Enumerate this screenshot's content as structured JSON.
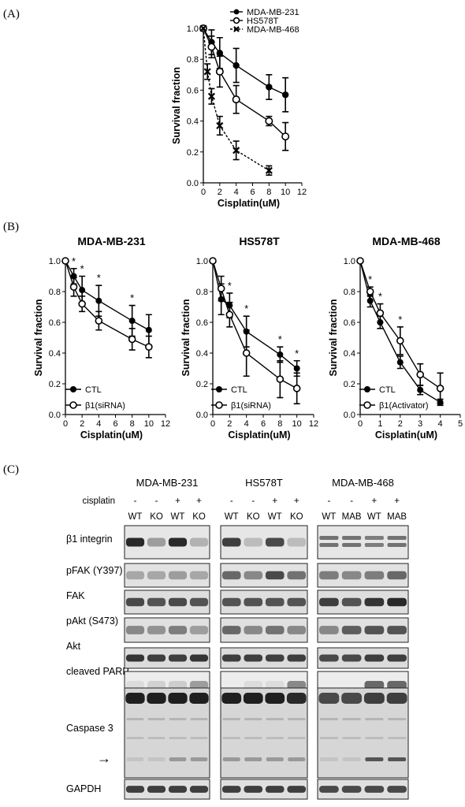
{
  "panels": {
    "a": "(A)",
    "b": "(B)",
    "c": "(C)"
  },
  "chart_data": [
    {
      "id": "A",
      "type": "line",
      "title": "",
      "xlabel": "Cisplatin(uM)",
      "ylabel": "Survival fraction",
      "xlim": [
        0,
        12
      ],
      "ylim": [
        0,
        1.0
      ],
      "xticks": [
        "0",
        "2",
        "4",
        "6",
        "8",
        "10",
        "12"
      ],
      "yticks": [
        "0.0",
        "0.2",
        "0.4",
        "0.6",
        "0.8",
        "1.0"
      ],
      "legend_position": "top-right",
      "series": [
        {
          "name": "MDA-MB-231",
          "marker": "filled-circle",
          "dash": "solid",
          "x": [
            0,
            1,
            2,
            4,
            8,
            10
          ],
          "y": [
            1.0,
            0.91,
            0.84,
            0.76,
            0.62,
            0.57
          ],
          "err": [
            0,
            0.08,
            0.1,
            0.11,
            0.08,
            0.11
          ]
        },
        {
          "name": "HS578T",
          "marker": "open-circle",
          "dash": "solid",
          "x": [
            0,
            1,
            2,
            4,
            8,
            10
          ],
          "y": [
            1.0,
            0.88,
            0.72,
            0.54,
            0.4,
            0.3
          ],
          "err": [
            0,
            0.07,
            0.1,
            0.09,
            0.03,
            0.09
          ]
        },
        {
          "name": "MDA-MB-468",
          "marker": "x",
          "dash": "dashed",
          "x": [
            0,
            0.5,
            1,
            2,
            4,
            8
          ],
          "y": [
            1.0,
            0.72,
            0.56,
            0.37,
            0.21,
            0.08
          ],
          "err": [
            0,
            0.05,
            0.05,
            0.06,
            0.06,
            0.03
          ]
        }
      ]
    },
    {
      "id": "B1",
      "type": "line",
      "title": "MDA-MB-231",
      "xlabel": "Cisplatin(uM)",
      "ylabel": "Survival fraction",
      "xlim": [
        0,
        12
      ],
      "ylim": [
        0,
        1.0
      ],
      "xticks": [
        "0",
        "2",
        "4",
        "6",
        "8",
        "10",
        "12"
      ],
      "yticks": [
        "0.0",
        "0.2",
        "0.4",
        "0.6",
        "0.8",
        "1.0"
      ],
      "legend_position": "bottom-left",
      "significance_x": [
        1,
        2,
        4,
        8
      ],
      "series": [
        {
          "name": "CTL",
          "marker": "filled-circle",
          "x": [
            0,
            1,
            2,
            4,
            8,
            10
          ],
          "y": [
            1.0,
            0.9,
            0.81,
            0.74,
            0.61,
            0.55
          ],
          "err": [
            0,
            0.05,
            0.09,
            0.1,
            0.1,
            0.1
          ]
        },
        {
          "name": "β1(siRNA)",
          "marker": "open-circle",
          "x": [
            0,
            1,
            2,
            4,
            8,
            10
          ],
          "y": [
            1.0,
            0.83,
            0.72,
            0.61,
            0.49,
            0.44
          ],
          "err": [
            0,
            0.06,
            0.05,
            0.06,
            0.07,
            0.07
          ]
        }
      ]
    },
    {
      "id": "B2",
      "type": "line",
      "title": "HS578T",
      "xlabel": "Cisplatin(uM)",
      "ylabel": "Survival fraction",
      "xlim": [
        0,
        12
      ],
      "ylim": [
        0,
        1.0
      ],
      "xticks": [
        "0",
        "2",
        "4",
        "6",
        "8",
        "10",
        "12"
      ],
      "yticks": [
        "0.0",
        "0.2",
        "0.4",
        "0.6",
        "0.8",
        "1.0"
      ],
      "legend_position": "bottom-left",
      "significance_x": [
        2,
        4,
        8,
        10
      ],
      "series": [
        {
          "name": "CTL",
          "marker": "filled-circle",
          "x": [
            0,
            1,
            2,
            4,
            8,
            10
          ],
          "y": [
            1.0,
            0.75,
            0.71,
            0.54,
            0.39,
            0.3
          ],
          "err": [
            0,
            0.1,
            0.08,
            0.1,
            0.05,
            0.05
          ]
        },
        {
          "name": "β1(siRNA)",
          "marker": "open-circle",
          "x": [
            0,
            1,
            2,
            4,
            8,
            10
          ],
          "y": [
            1.0,
            0.82,
            0.65,
            0.4,
            0.23,
            0.17
          ],
          "err": [
            0,
            0.08,
            0.08,
            0.15,
            0.12,
            0.1
          ]
        }
      ]
    },
    {
      "id": "B3",
      "type": "line",
      "title": "MDA-MB-468",
      "xlabel": "Cisplatin(uM)",
      "ylabel": "Survival fraction",
      "xlim": [
        0,
        5
      ],
      "ylim": [
        0,
        1.0
      ],
      "xticks": [
        "0",
        "1",
        "2",
        "3",
        "4",
        "5"
      ],
      "yticks": [
        "0.0",
        "0.2",
        "0.4",
        "0.6",
        "0.8",
        "1.0"
      ],
      "legend_position": "bottom-left",
      "significance_x": [
        0.5,
        1,
        2
      ],
      "series": [
        {
          "name": "CTL",
          "marker": "filled-circle",
          "x": [
            0,
            0.5,
            1,
            2,
            3,
            4
          ],
          "y": [
            1.0,
            0.74,
            0.6,
            0.34,
            0.16,
            0.08
          ],
          "err": [
            0,
            0.04,
            0.04,
            0.04,
            0.03,
            0.02
          ]
        },
        {
          "name": "β1(Activator)",
          "marker": "open-circle",
          "x": [
            0,
            0.5,
            1,
            2,
            3,
            4
          ],
          "y": [
            1.0,
            0.8,
            0.66,
            0.48,
            0.26,
            0.17
          ],
          "err": [
            0,
            0.03,
            0.06,
            0.09,
            0.07,
            0.1
          ]
        }
      ]
    }
  ],
  "blot": {
    "cell_lines": [
      "MDA-MB-231",
      "HS578T",
      "MDA-MB-468"
    ],
    "treatment_label": "cisplatin",
    "treatment_marks": [
      "-",
      "-",
      "+",
      "+"
    ],
    "lanes": [
      [
        "WT",
        "KO",
        "WT",
        "KO"
      ],
      [
        "WT",
        "KO",
        "WT",
        "KO"
      ],
      [
        "WT",
        "MAB",
        "WT",
        "MAB"
      ]
    ],
    "proteins": [
      "β1 integrin",
      "pFAK (Y397)",
      "FAK",
      "pAkt (S473)",
      "Akt",
      "cleaved PARP",
      "Caspase 3",
      "GAPDH"
    ],
    "arrow": "→"
  }
}
